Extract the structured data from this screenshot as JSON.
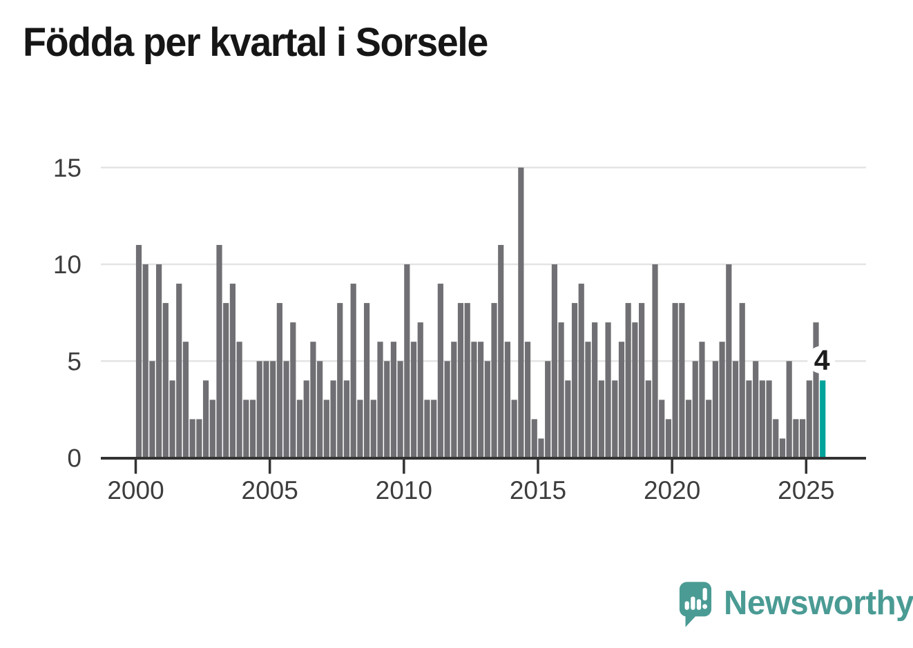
{
  "title": "Födda per kvartal i Sorsele",
  "footer": {
    "brand": "Newsworthy"
  },
  "colors": {
    "bar": "#707074",
    "highlight": "#00a39a",
    "axis_text": "#3d3d3d",
    "gridline": "#e4e4e4",
    "axis_line": "#333333",
    "badge_text": "#1c1c1c",
    "badge_bg": "#ffffff",
    "logo_teal": "#4a9b94"
  },
  "chart_data": {
    "type": "bar",
    "title": "Födda per kvartal i Sorsele",
    "xlabel": "",
    "ylabel": "",
    "periodicity": "quarterly",
    "x_start": "2000Q1",
    "x_end": "2025Q3",
    "ylim": [
      0,
      15
    ],
    "y_ticks": [
      0,
      5,
      10,
      15
    ],
    "x_tick_years": [
      2000,
      2005,
      2010,
      2015,
      2020,
      2025
    ],
    "grid": "horizontal",
    "legend": "none",
    "highlight_last_bar": true,
    "last_value_label": "4",
    "categories": [
      "2000Q1",
      "2000Q2",
      "2000Q3",
      "2000Q4",
      "2001Q1",
      "2001Q2",
      "2001Q3",
      "2001Q4",
      "2002Q1",
      "2002Q2",
      "2002Q3",
      "2002Q4",
      "2003Q1",
      "2003Q2",
      "2003Q3",
      "2003Q4",
      "2004Q1",
      "2004Q2",
      "2004Q3",
      "2004Q4",
      "2005Q1",
      "2005Q2",
      "2005Q3",
      "2005Q4",
      "2006Q1",
      "2006Q2",
      "2006Q3",
      "2006Q4",
      "2007Q1",
      "2007Q2",
      "2007Q3",
      "2007Q4",
      "2008Q1",
      "2008Q2",
      "2008Q3",
      "2008Q4",
      "2009Q1",
      "2009Q2",
      "2009Q3",
      "2009Q4",
      "2010Q1",
      "2010Q2",
      "2010Q3",
      "2010Q4",
      "2011Q1",
      "2011Q2",
      "2011Q3",
      "2011Q4",
      "2012Q1",
      "2012Q2",
      "2012Q3",
      "2012Q4",
      "2013Q1",
      "2013Q2",
      "2013Q3",
      "2013Q4",
      "2014Q1",
      "2014Q2",
      "2014Q3",
      "2014Q4",
      "2015Q1",
      "2015Q2",
      "2015Q3",
      "2015Q4",
      "2016Q1",
      "2016Q2",
      "2016Q3",
      "2016Q4",
      "2017Q1",
      "2017Q2",
      "2017Q3",
      "2017Q4",
      "2018Q1",
      "2018Q2",
      "2018Q3",
      "2018Q4",
      "2019Q1",
      "2019Q2",
      "2019Q3",
      "2019Q4",
      "2020Q1",
      "2020Q2",
      "2020Q3",
      "2020Q4",
      "2021Q1",
      "2021Q2",
      "2021Q3",
      "2021Q4",
      "2022Q1",
      "2022Q2",
      "2022Q3",
      "2022Q4",
      "2023Q1",
      "2023Q2",
      "2023Q3",
      "2023Q4",
      "2024Q1",
      "2024Q2",
      "2024Q3",
      "2024Q4",
      "2025Q1",
      "2025Q2",
      "2025Q3"
    ],
    "values": [
      11,
      10,
      5,
      10,
      8,
      4,
      9,
      6,
      2,
      2,
      4,
      3,
      11,
      8,
      9,
      6,
      3,
      3,
      5,
      5,
      5,
      8,
      5,
      7,
      3,
      4,
      6,
      5,
      3,
      4,
      8,
      4,
      9,
      3,
      8,
      3,
      6,
      5,
      6,
      5,
      10,
      6,
      7,
      3,
      3,
      9,
      5,
      6,
      8,
      8,
      6,
      6,
      5,
      8,
      11,
      6,
      3,
      15,
      6,
      2,
      1,
      5,
      10,
      7,
      4,
      8,
      9,
      6,
      7,
      4,
      7,
      4,
      6,
      8,
      7,
      8,
      4,
      10,
      3,
      2,
      8,
      8,
      3,
      5,
      6,
      3,
      5,
      6,
      10,
      5,
      8,
      4,
      5,
      4,
      4,
      2,
      1,
      5,
      2,
      2,
      4,
      7,
      4
    ]
  }
}
